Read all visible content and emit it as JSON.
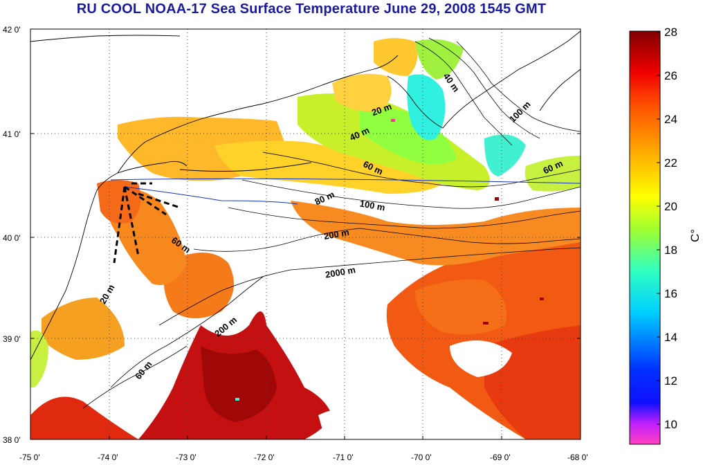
{
  "title": "RU COOL  NOAA-17 Sea Surface Temperature June 29, 2008 1545 GMT",
  "map": {
    "lat_ticks": [
      "42 0'",
      "41 0'",
      "40 0'",
      "39 0'",
      "38 0'"
    ],
    "lon_ticks": [
      "-75 0'",
      "-74 0'",
      "-73 0'",
      "-72 0'",
      "-71 0'",
      "-70 0'",
      "-69 0'",
      "-68 0'"
    ],
    "depth_labels": [
      "40 m",
      "100 m",
      "20 m",
      "40 m",
      "60 m",
      "60 m",
      "80 m",
      "100 m",
      "200 m",
      "60 m",
      "2000 m",
      "20 m",
      "200 m",
      "60 m"
    ]
  },
  "colorbar": {
    "ticks": [
      "28",
      "26",
      "24",
      "22",
      "20",
      "18",
      "16",
      "14",
      "12",
      "10"
    ],
    "label": "C°",
    "range": [
      9,
      28
    ],
    "colors": [
      "#ff40c0",
      "#8000ff",
      "#0010ff",
      "#00a0ff",
      "#00ffff",
      "#20ff80",
      "#ffff00",
      "#ffa000",
      "#ff3000",
      "#c00000",
      "#700000"
    ]
  }
}
